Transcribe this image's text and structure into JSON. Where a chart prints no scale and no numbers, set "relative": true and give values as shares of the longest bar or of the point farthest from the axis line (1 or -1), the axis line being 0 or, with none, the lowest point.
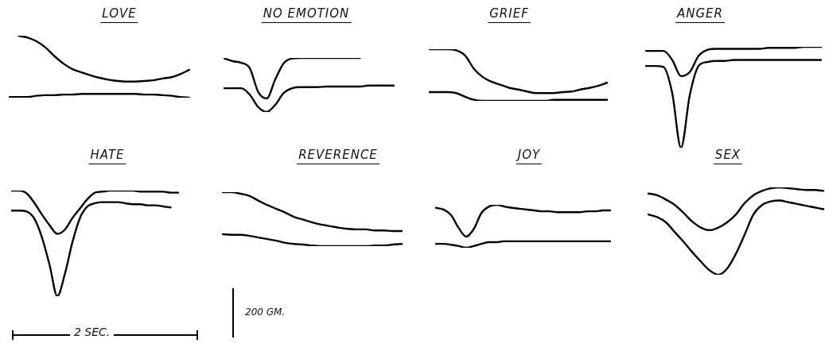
{
  "chart_data": [
    {
      "type": "line",
      "title": "LOVE",
      "relative": true,
      "marker": "none",
      "legend": false,
      "categories": [
        null,
        null,
        null,
        null,
        null,
        null,
        null,
        null,
        null,
        null,
        null,
        null,
        null,
        null,
        null,
        null,
        null,
        null,
        null,
        null,
        null
      ],
      "series": [
        {
          "color": "#000000",
          "values": [
            null,
            1,
            0.97,
            0.91,
            0.81,
            0.67,
            0.55,
            0.46,
            0.41,
            0.36,
            0.32,
            0.29,
            0.27,
            0.26,
            0.26,
            0.27,
            0.28,
            0.31,
            0.33,
            0.38,
            0.45
          ]
        },
        {
          "color": "#000000",
          "values": [
            0.01,
            0.01,
            0.01,
            0.03,
            0.04,
            0.04,
            0.05,
            0.05,
            0.06,
            0.06,
            0.06,
            0.06,
            0.06,
            0.06,
            0.06,
            0.05,
            0.05,
            0.04,
            0.03,
            0.01,
            0
          ]
        }
      ]
    },
    {
      "type": "line",
      "title": "NO EMOTION",
      "relative": true,
      "marker": "none",
      "legend": false,
      "categories": [
        null,
        null,
        null,
        null,
        null,
        null,
        null,
        null,
        null,
        null,
        null,
        null,
        null,
        null,
        null,
        null,
        null,
        null,
        null,
        null,
        null
      ],
      "series": [
        {
          "color": "#000000",
          "values": [
            0.99,
            0.94,
            0.91,
            0.81,
            0.37,
            0.25,
            0.6,
            0.9,
            0.99,
            1,
            1,
            1,
            1,
            1,
            1,
            1,
            1,
            null,
            null,
            null,
            null
          ]
        },
        {
          "color": "#000000",
          "values": [
            0.44,
            0.44,
            0.44,
            0.32,
            0.09,
            0,
            0.13,
            0.35,
            0.44,
            0.46,
            0.46,
            0.46,
            0.47,
            0.47,
            0.47,
            0.47,
            0.47,
            0.49,
            0.49,
            0.49,
            0.49
          ]
        }
      ]
    },
    {
      "type": "line",
      "title": "GRIEF",
      "relative": true,
      "marker": "none",
      "legend": false,
      "categories": [
        null,
        null,
        null,
        null,
        null,
        null,
        null,
        null,
        null,
        null,
        null,
        null,
        null,
        null,
        null,
        null,
        null,
        null,
        null,
        null,
        null
      ],
      "series": [
        {
          "color": "#000000",
          "values": [
            1,
            1,
            1,
            0.98,
            0.88,
            0.62,
            0.46,
            0.37,
            0.31,
            0.25,
            0.22,
            0.18,
            0.15,
            0.15,
            0.15,
            0.17,
            0.18,
            0.22,
            0.25,
            0.29,
            0.35
          ]
        },
        {
          "color": "#000000",
          "values": [
            0.17,
            0.17,
            0.17,
            0.15,
            0.08,
            0.02,
            0,
            0,
            0,
            0,
            0,
            0,
            0,
            0,
            0.02,
            0.02,
            0.02,
            0.02,
            0.02,
            0.02,
            0.02
          ]
        }
      ]
    },
    {
      "type": "line",
      "title": "ANGER",
      "relative": true,
      "marker": "none",
      "legend": false,
      "categories": [
        null,
        null,
        null,
        null,
        null,
        null,
        null,
        null,
        null,
        null,
        null,
        null,
        null,
        null,
        null,
        null,
        null,
        null,
        null,
        null,
        null
      ],
      "series": [
        {
          "color": "#000000",
          "values": [
            0.96,
            0.96,
            0.96,
            0.87,
            0.71,
            0.75,
            0.91,
            0.97,
            0.98,
            0.98,
            0.98,
            0.98,
            0.98,
            0.98,
            0.99,
            0.99,
            0.99,
            0.99,
            1,
            1,
            1
          ]
        },
        {
          "color": "#000000",
          "values": [
            0.81,
            0.81,
            0.8,
            0.54,
            0,
            0.52,
            0.81,
            0.85,
            0.86,
            0.86,
            0.87,
            0.87,
            0.87,
            0.87,
            0.87,
            0.87,
            0.87,
            0.87,
            0.87,
            0.87,
            0.87
          ]
        }
      ]
    },
    {
      "type": "line",
      "title": "HATE",
      "relative": true,
      "marker": "none",
      "legend": false,
      "categories": [
        null,
        null,
        null,
        null,
        null,
        null,
        null,
        null,
        null,
        null,
        null,
        null,
        null,
        null,
        null,
        null,
        null,
        null,
        null,
        null,
        null,
        null,
        null
      ],
      "series": [
        {
          "color": "#000000",
          "values": [
            1,
            1,
            0.97,
            0.88,
            0.77,
            0.67,
            0.59,
            0.63,
            0.74,
            0.83,
            0.92,
            0.98,
            0.99,
            1,
            1,
            1,
            1,
            0.99,
            0.99,
            0.99,
            0.99,
            0.98,
            0.98
          ]
        },
        {
          "color": "#000000",
          "values": [
            0.81,
            0.81,
            0.8,
            0.73,
            0.55,
            0.29,
            0,
            0.21,
            0.51,
            0.74,
            0.85,
            0.88,
            0.89,
            0.89,
            0.89,
            0.88,
            0.87,
            0.87,
            0.86,
            0.86,
            0.85,
            0.84,
            null
          ]
        }
      ]
    },
    {
      "type": "line",
      "title": "REVERENCE",
      "relative": true,
      "marker": "none",
      "legend": false,
      "categories": [
        null,
        null,
        null,
        null,
        null,
        null,
        null,
        null,
        null,
        null,
        null,
        null,
        null,
        null,
        null,
        null,
        null,
        null,
        null,
        null,
        null
      ],
      "series": [
        {
          "color": "#000000",
          "values": [
            1,
            1,
            0.97,
            0.93,
            0.84,
            0.76,
            0.69,
            0.62,
            0.54,
            0.49,
            0.44,
            0.4,
            0.37,
            0.34,
            0.32,
            0.31,
            0.31,
            0.29,
            0.29,
            0.28,
            0.28
          ]
        },
        {
          "color": "#000000",
          "values": [
            0.22,
            0.21,
            0.21,
            0.19,
            0.16,
            0.13,
            0.1,
            0.06,
            0.04,
            0.03,
            0.01,
            0,
            0,
            0,
            0,
            0,
            0,
            0.01,
            0.01,
            0.03,
            0.04
          ]
        }
      ]
    },
    {
      "type": "line",
      "title": "JOY",
      "relative": true,
      "marker": "none",
      "legend": false,
      "categories": [
        null,
        null,
        null,
        null,
        null,
        null,
        null,
        null,
        null,
        null,
        null,
        null,
        null,
        null,
        null,
        null,
        null,
        null,
        null,
        null,
        null,
        null,
        null,
        null
      ],
      "series": [
        {
          "color": "#000000",
          "values": [
            0.93,
            0.89,
            0.76,
            0.46,
            0.26,
            0.44,
            0.81,
            0.96,
            1,
            0.96,
            0.93,
            0.91,
            0.89,
            0.87,
            0.85,
            0.85,
            0.83,
            0.83,
            0.83,
            0.83,
            0.85,
            0.85,
            0.87,
            0.87
          ]
        },
        {
          "color": "#000000",
          "values": [
            0.09,
            0.09,
            0.07,
            0.04,
            0,
            0.04,
            0.09,
            0.13,
            0.13,
            0.15,
            0.15,
            0.15,
            0.15,
            0.15,
            0.15,
            0.15,
            0.15,
            0.15,
            0.15,
            0.15,
            0.15,
            0.15,
            0.15,
            0.15
          ]
        }
      ]
    },
    {
      "type": "line",
      "title": "SEX",
      "relative": true,
      "marker": "none",
      "legend": false,
      "categories": [
        null,
        null,
        null,
        null,
        null,
        null,
        null,
        null,
        null,
        null,
        null,
        null,
        null,
        null,
        null,
        null,
        null,
        null,
        null,
        null,
        null
      ],
      "series": [
        {
          "color": "#000000",
          "values": [
            0.93,
            0.91,
            0.86,
            0.8,
            0.71,
            0.61,
            0.54,
            0.51,
            0.54,
            0.6,
            0.69,
            0.82,
            0.91,
            0.96,
            0.99,
            1,
            0.99,
            0.98,
            0.97,
            0.97,
            0.96
          ]
        },
        {
          "color": "#000000",
          "values": [
            0.69,
            0.66,
            0.6,
            0.49,
            0.38,
            0.26,
            0.15,
            0.05,
            0,
            0.07,
            0.24,
            0.46,
            0.69,
            0.8,
            0.84,
            0.85,
            0.83,
            0.81,
            0.79,
            0.77,
            0.75
          ]
        }
      ]
    },
    {
      "type": "other",
      "annotations": [
        "2 SEC.",
        "200 GM."
      ]
    }
  ]
}
